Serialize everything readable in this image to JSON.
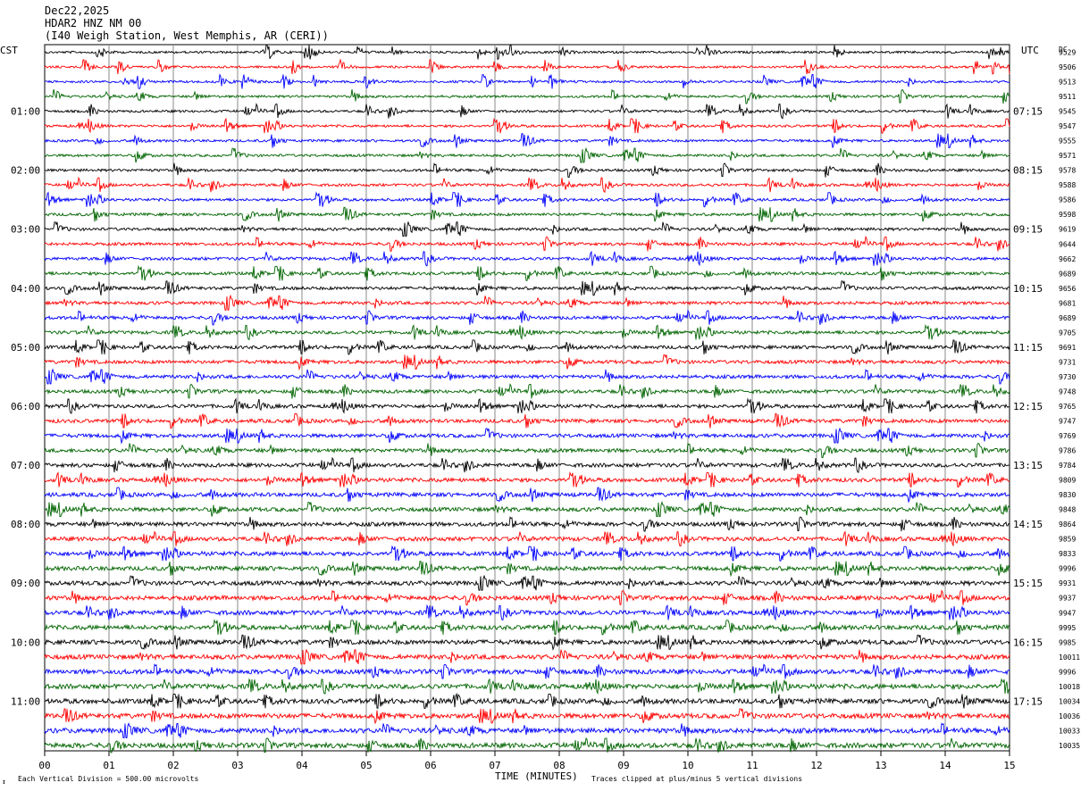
{
  "header": {
    "date": "Dec22,2025",
    "station": "HDAR2 HNZ NM 00",
    "location": "(I40 Weigh Station, West Memphis, AR (CERI))"
  },
  "chart_data": {
    "type": "line",
    "left_axis_label": "CST",
    "right_axis_label": "UTC",
    "dc_label": "DC",
    "xlabel": "TIME (MINUTES)",
    "x_ticks": [
      "00",
      "01",
      "02",
      "03",
      "04",
      "05",
      "06",
      "07",
      "08",
      "09",
      "10",
      "11",
      "12",
      "13",
      "14",
      "15"
    ],
    "xlim": [
      0,
      15
    ],
    "cst_hour_labels": [
      "01:00",
      "02:00",
      "03:00",
      "04:00",
      "05:00",
      "06:00",
      "07:00",
      "08:00",
      "09:00",
      "10:00",
      "11:00"
    ],
    "utc_hour_labels": [
      "07:15",
      "08:15",
      "09:15",
      "10:15",
      "11:15",
      "12:15",
      "13:15",
      "14:15",
      "15:15",
      "16:15",
      "17:15"
    ],
    "trace_colors": [
      "#000000",
      "#ff0000",
      "#0000ff",
      "#006400"
    ],
    "dc_offsets": [
      "9529",
      "9506",
      "9513",
      "9511",
      "9545",
      "9547",
      "9555",
      "9571",
      "9578",
      "9588",
      "9586",
      "9598",
      "9619",
      "9644",
      "9662",
      "9689",
      "9656",
      "9681",
      "9689",
      "9705",
      "9691",
      "9731",
      "9730",
      "9748",
      "9765",
      "9747",
      "9769",
      "9786",
      "9784",
      "9809",
      "9830",
      "9848",
      "9864",
      "9859",
      "9833",
      "9996",
      "9931",
      "9937",
      "9947",
      "9995",
      "9985",
      "10011",
      "9996",
      "10018",
      "10034",
      "10036",
      "10033",
      "10035"
    ],
    "footer_left": "Each Vertical Division =  500.00 microvolts",
    "footer_right": "Traces clipped at plus/minus 5 vertical divisions",
    "corner_mark": "↕"
  }
}
